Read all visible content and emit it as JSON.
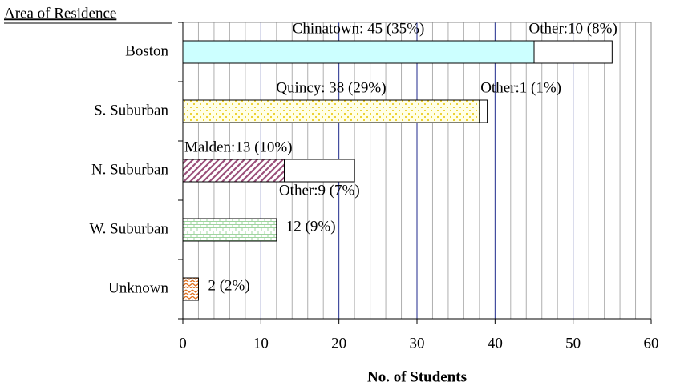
{
  "chart_data": {
    "type": "stacked_barh",
    "y_axis_title": "Area of Residence",
    "x_axis_title": "No. of Students",
    "categories": [
      "Boston",
      "S. Suburban",
      "N. Suburban",
      "W. Suburban",
      "Unknown"
    ],
    "series": [
      {
        "colors": [
          "#ccffff",
          "#ffff99",
          "#cc99cc",
          "#ccffcc",
          "#ff9966"
        ],
        "patterns": [
          "solid",
          "dots",
          "hatch",
          "brick",
          "zigzag"
        ],
        "values": [
          45,
          38,
          13,
          12,
          2
        ],
        "value_labels": [
          "Chinatown: 45 (35%)",
          "Quincy: 38 (29%)",
          "Malden:13 (10%)",
          "12 (9%)",
          "2 (2%)"
        ]
      },
      {
        "colors": [
          "#ffffff",
          "#ffffff",
          "#ffffff",
          null,
          null
        ],
        "values": [
          10,
          1,
          9,
          null,
          null
        ],
        "value_labels": [
          "Other:10 (8%)",
          "Other:1 (1%)",
          "Other:9 (7%)",
          null,
          null
        ]
      }
    ],
    "xlim": [
      0,
      60
    ],
    "xticks": [
      0,
      10,
      20,
      30,
      40,
      50,
      60
    ],
    "minor_xticks": [
      2,
      4,
      6,
      8,
      12,
      14,
      16,
      18,
      22,
      24,
      26,
      28,
      32,
      34,
      36,
      38,
      42,
      44,
      46,
      48,
      52,
      54,
      56,
      58
    ],
    "grid": true,
    "major_grid_color": "#1f2a8c",
    "minor_grid_color": "#b0b0b0"
  }
}
